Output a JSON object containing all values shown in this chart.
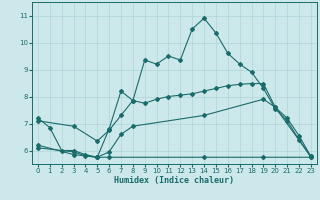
{
  "xlabel": "Humidex (Indice chaleur)",
  "background_color": "#cde8ea",
  "line_color": "#1a6b6b",
  "xlim": [
    -0.5,
    23.5
  ],
  "ylim": [
    5.5,
    11.5
  ],
  "yticks": [
    6,
    7,
    8,
    9,
    10,
    11
  ],
  "xticks": [
    0,
    1,
    2,
    3,
    4,
    5,
    6,
    7,
    8,
    9,
    10,
    11,
    12,
    13,
    14,
    15,
    16,
    17,
    18,
    19,
    20,
    21,
    22,
    23
  ],
  "line1_x": [
    0,
    1,
    2,
    3,
    4,
    5,
    6,
    7,
    8,
    9,
    10,
    11,
    12,
    13,
    14,
    15,
    16,
    17,
    18,
    19,
    20,
    21,
    22,
    23
  ],
  "line1_y": [
    7.2,
    6.85,
    6.0,
    6.0,
    5.85,
    5.75,
    6.8,
    8.2,
    7.85,
    9.35,
    9.2,
    9.5,
    9.35,
    10.5,
    10.9,
    10.35,
    9.6,
    9.2,
    8.9,
    8.3,
    7.55,
    7.1,
    6.4,
    5.75
  ],
  "line2_x": [
    0,
    3,
    5,
    6,
    7,
    8,
    9,
    10,
    11,
    12,
    13,
    14,
    15,
    16,
    17,
    18,
    19,
    20,
    21,
    22,
    23
  ],
  "line2_y": [
    7.1,
    6.9,
    6.35,
    6.75,
    7.3,
    7.85,
    7.75,
    7.9,
    8.0,
    8.05,
    8.1,
    8.2,
    8.3,
    8.4,
    8.45,
    8.48,
    8.48,
    7.6,
    7.2,
    6.55,
    5.78
  ],
  "line3_x": [
    0,
    3,
    5,
    6,
    7,
    8,
    14,
    19,
    20,
    23
  ],
  "line3_y": [
    6.2,
    5.85,
    5.75,
    5.95,
    6.6,
    6.9,
    7.3,
    7.9,
    7.6,
    5.78
  ],
  "line4_x": [
    0,
    3,
    4,
    5,
    6,
    14,
    19,
    23
  ],
  "line4_y": [
    6.1,
    5.95,
    5.8,
    5.75,
    5.75,
    5.75,
    5.75,
    5.75
  ],
  "grid_color": "#aed4d6"
}
